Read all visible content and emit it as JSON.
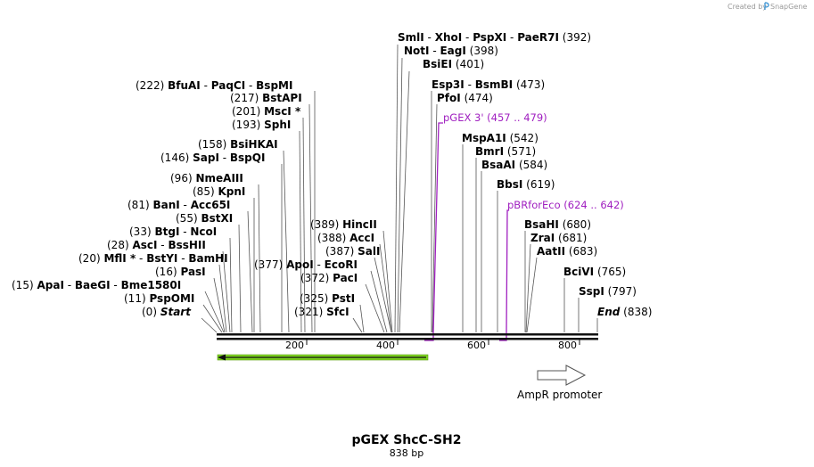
{
  "credit": {
    "text": "Created by",
    "brand": "SnapGene"
  },
  "title": "pGEX ShcC-SH2",
  "length_label": "838 bp",
  "ruler": {
    "ticks": [
      "200",
      "400",
      "600",
      "800"
    ]
  },
  "left_sites": [
    {
      "pos": "(222)",
      "names": [
        "BfuAI",
        "PaqCI",
        "BspMI"
      ]
    },
    {
      "pos": "(217)",
      "names": [
        "BstAPI"
      ]
    },
    {
      "pos": "(201)",
      "names": [
        "MscI *"
      ]
    },
    {
      "pos": "(193)",
      "names": [
        "SphI"
      ]
    },
    {
      "pos": "(158)",
      "names": [
        "BsiHKAI"
      ]
    },
    {
      "pos": "(146)",
      "names": [
        "SapI",
        "BspQI"
      ]
    },
    {
      "pos": "(96)",
      "names": [
        "NmeAIII"
      ]
    },
    {
      "pos": "(85)",
      "names": [
        "KpnI"
      ]
    },
    {
      "pos": "(81)",
      "names": [
        "BanI",
        "Acc65I"
      ]
    },
    {
      "pos": "(55)",
      "names": [
        "BstXI"
      ]
    },
    {
      "pos": "(33)",
      "names": [
        "BtgI",
        "NcoI"
      ]
    },
    {
      "pos": "(28)",
      "names": [
        "AscI",
        "BssHII"
      ]
    },
    {
      "pos": "(20)",
      "names": [
        "MflI *",
        "BstYI",
        "BamHI"
      ]
    },
    {
      "pos": "(16)",
      "names": [
        "PasI"
      ]
    },
    {
      "pos": "(15)",
      "names": [
        "ApaI",
        "BaeGI",
        "Bme1580I"
      ]
    },
    {
      "pos": "(11)",
      "names": [
        "PspOMI"
      ]
    },
    {
      "pos": "(0)",
      "names": [
        "Start"
      ]
    }
  ],
  "middle_sites": [
    {
      "pos": "(389)",
      "names": [
        "HincII"
      ]
    },
    {
      "pos": "(388)",
      "names": [
        "AccI"
      ]
    },
    {
      "pos": "(387)",
      "names": [
        "SalI"
      ]
    },
    {
      "pos": "(377)",
      "names": [
        "ApoI",
        "EcoRI"
      ]
    },
    {
      "pos": "(372)",
      "names": [
        "PacI"
      ]
    },
    {
      "pos": "(325)",
      "names": [
        "PstI"
      ]
    },
    {
      "pos": "(321)",
      "names": [
        "SfcI"
      ]
    }
  ],
  "right_sites": [
    {
      "pos": "(392)",
      "names": [
        "SmlI",
        "XhoI",
        "PspXI",
        "PaeR7I"
      ]
    },
    {
      "pos": "(398)",
      "names": [
        "NotI",
        "EagI"
      ]
    },
    {
      "pos": "(401)",
      "names": [
        "BsiEI"
      ]
    },
    {
      "pos": "(473)",
      "names": [
        "Esp3I",
        "BsmBI"
      ]
    },
    {
      "pos": "(474)",
      "names": [
        "PfoI"
      ]
    },
    {
      "pos": "(542)",
      "names": [
        "MspA1I"
      ]
    },
    {
      "pos": "(571)",
      "names": [
        "BmrI"
      ]
    },
    {
      "pos": "(584)",
      "names": [
        "BsaAI"
      ]
    },
    {
      "pos": "(619)",
      "names": [
        "BbsI"
      ]
    },
    {
      "pos": "(680)",
      "names": [
        "BsaHI"
      ]
    },
    {
      "pos": "(681)",
      "names": [
        "ZraI"
      ]
    },
    {
      "pos": "(683)",
      "names": [
        "AatII"
      ]
    },
    {
      "pos": "(765)",
      "names": [
        "BciVI"
      ]
    },
    {
      "pos": "(797)",
      "names": [
        "SspI"
      ]
    },
    {
      "pos": "(838)",
      "names": [
        "End"
      ]
    }
  ],
  "primers": [
    {
      "name": "pGEX 3'",
      "range": "(457 .. 479)"
    },
    {
      "name": "pBRforEco",
      "range": "(624 .. 642)"
    }
  ],
  "features": {
    "gene_color": "#7ed321",
    "promoter_label": "AmpR promoter"
  },
  "colors": {
    "primer": "#a020c0",
    "backbone": "#111111"
  }
}
